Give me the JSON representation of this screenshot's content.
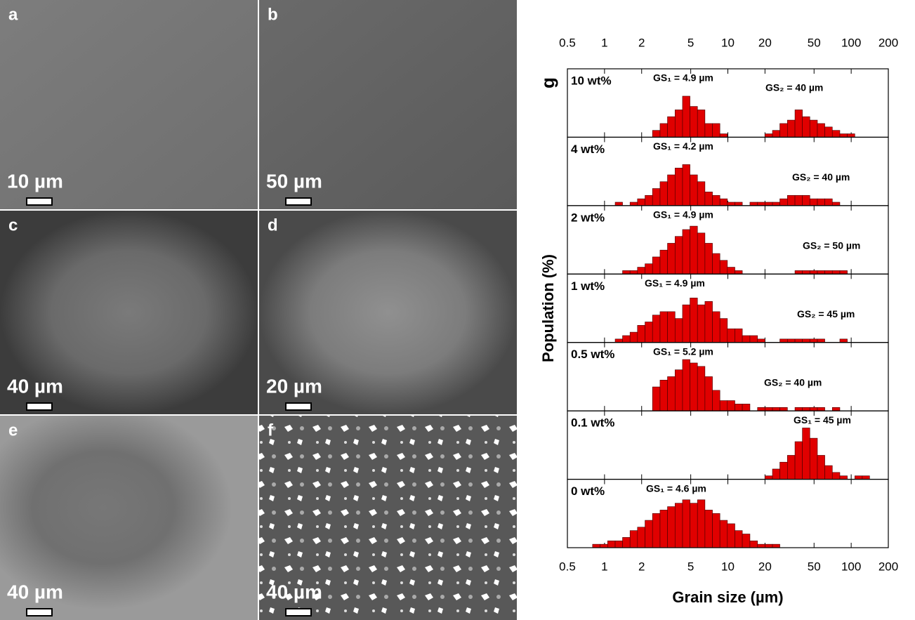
{
  "panels": [
    {
      "label": "a",
      "scale": "10 µm"
    },
    {
      "label": "b",
      "scale": "50 µm"
    },
    {
      "label": "c",
      "scale": "40 µm"
    },
    {
      "label": "d",
      "scale": "20 µm"
    },
    {
      "label": "e",
      "scale": "40 µm"
    },
    {
      "label": "f",
      "scale": "40 µm"
    }
  ],
  "chart_data": {
    "type": "histogram",
    "label": "g",
    "xlabel": "Grain size (µm)",
    "ylabel": "Population (%)",
    "log_x": true,
    "xlim": [
      0.5,
      200
    ],
    "xticks": [
      0.5,
      1,
      2,
      5,
      10,
      20,
      50,
      100,
      200
    ],
    "ylim": [
      0,
      20
    ],
    "color": "#e00000",
    "subplots": [
      {
        "name": "10 wt%",
        "annotations": [
          "GS₁ = 4.9 µm",
          "GS₂ = 40 µm"
        ],
        "bins": [
          2.45,
          2.82,
          3.24,
          3.73,
          4.29,
          4.93,
          5.67,
          6.52,
          7.5,
          8.62,
          9.91,
          11.4,
          13.1,
          15.1,
          17.4,
          20,
          23,
          26.4,
          30.4,
          35,
          40.2,
          46.2,
          53.2,
          61.1,
          70.3,
          80.9,
          93,
          107
        ],
        "counts": [
          2,
          4,
          6,
          8,
          12,
          9,
          8,
          4,
          4,
          1,
          0,
          0,
          0,
          0,
          0,
          1,
          2,
          4,
          5,
          8,
          6,
          5,
          4,
          3,
          2,
          1,
          1
        ]
      },
      {
        "name": "4 wt%",
        "annotations": [
          "GS₁ = 4.2 µm",
          "GS₂ = 40 µm"
        ],
        "bins": [
          1.22,
          1.4,
          1.61,
          1.85,
          2.13,
          2.45,
          2.82,
          3.24,
          3.73,
          4.29,
          4.93,
          5.67,
          6.52,
          7.5,
          8.62,
          9.91,
          11.4,
          13.1,
          15.1,
          17.4,
          20,
          23,
          26.4,
          30.4,
          35,
          40.2,
          46.2,
          53.2,
          61.1,
          70.3,
          80.9
        ],
        "counts": [
          1,
          0,
          1,
          2,
          3,
          5,
          7,
          9,
          11,
          12,
          9,
          7,
          4,
          3,
          2,
          1,
          1,
          0,
          1,
          1,
          1,
          1,
          2,
          3,
          3,
          3,
          2,
          2,
          2,
          1
        ]
      },
      {
        "name": "2 wt%",
        "annotations": [
          "GS₁ = 4.9 µm",
          "GS₂ = 50 µm"
        ],
        "bins": [
          1.4,
          1.61,
          1.85,
          2.13,
          2.45,
          2.82,
          3.24,
          3.73,
          4.29,
          4.93,
          5.67,
          6.52,
          7.5,
          8.62,
          9.91,
          11.4,
          13.1,
          15.1,
          17.4,
          20,
          23,
          26.4,
          30.4,
          35,
          40.2,
          46.2,
          53.2,
          61.1,
          70.3,
          80.9,
          93
        ],
        "counts": [
          1,
          1,
          2,
          3,
          5,
          7,
          9,
          11,
          13,
          14,
          12,
          9,
          6,
          4,
          2,
          1,
          0,
          0,
          0,
          0,
          0,
          0,
          0,
          1,
          1,
          1,
          1,
          1,
          1,
          1
        ]
      },
      {
        "name": "1 wt%",
        "annotations": [
          "GS₁ = 4.9 µm",
          "GS₂ = 45 µm"
        ],
        "bins": [
          1.22,
          1.4,
          1.61,
          1.85,
          2.13,
          2.45,
          2.82,
          3.24,
          3.73,
          4.29,
          4.93,
          5.67,
          6.52,
          7.5,
          8.62,
          9.91,
          11.4,
          13.1,
          15.1,
          17.4,
          20,
          23,
          26.4,
          30.4,
          35,
          40.2,
          46.2,
          53.2,
          61.1,
          70.3,
          80.9,
          93
        ],
        "counts": [
          1,
          2,
          3,
          5,
          6,
          8,
          9,
          9,
          7,
          11,
          13,
          11,
          12,
          9,
          7,
          4,
          4,
          2,
          2,
          1,
          0,
          0,
          1,
          1,
          1,
          1,
          1,
          1,
          0,
          0,
          1
        ]
      },
      {
        "name": "0.5 wt%",
        "annotations": [
          "GS₁ = 5.2 µm",
          "GS₂ = 40 µm"
        ],
        "bins": [
          2.45,
          2.82,
          3.24,
          3.73,
          4.29,
          4.93,
          5.67,
          6.52,
          7.5,
          8.62,
          9.91,
          11.4,
          13.1,
          15.1,
          17.4,
          20,
          23,
          26.4,
          30.4,
          35,
          40.2,
          46.2,
          53.2,
          61.1,
          70.3,
          80.9,
          93
        ],
        "counts": [
          7,
          9,
          10,
          12,
          15,
          14,
          13,
          10,
          6,
          3,
          3,
          2,
          2,
          0,
          1,
          1,
          1,
          1,
          0,
          1,
          1,
          1,
          1,
          0,
          1,
          0
        ]
      },
      {
        "name": "0.1 wt%",
        "annotations": [
          "GS₁ = 45 µm"
        ],
        "bins": [
          20,
          23,
          26.4,
          30.4,
          35,
          40.2,
          46.2,
          53.2,
          61.1,
          70.3,
          80.9,
          93,
          107,
          123,
          141
        ],
        "counts": [
          1,
          3,
          5,
          7,
          11,
          15,
          12,
          7,
          4,
          2,
          1,
          0,
          1,
          1
        ]
      },
      {
        "name": "0 wt%",
        "annotations": [
          "GS₁ = 4.6 µm"
        ],
        "bins": [
          0.8,
          0.92,
          1.06,
          1.22,
          1.4,
          1.61,
          1.85,
          2.13,
          2.45,
          2.82,
          3.24,
          3.73,
          4.29,
          4.93,
          5.67,
          6.52,
          7.5,
          8.62,
          9.91,
          11.4,
          13.1,
          15.1,
          17.4,
          20,
          23,
          26.4
        ],
        "counts": [
          1,
          1,
          2,
          2,
          3,
          5,
          6,
          8,
          10,
          11,
          12,
          13,
          14,
          13,
          14,
          11,
          10,
          8,
          7,
          5,
          4,
          2,
          1,
          1,
          1
        ]
      }
    ]
  }
}
